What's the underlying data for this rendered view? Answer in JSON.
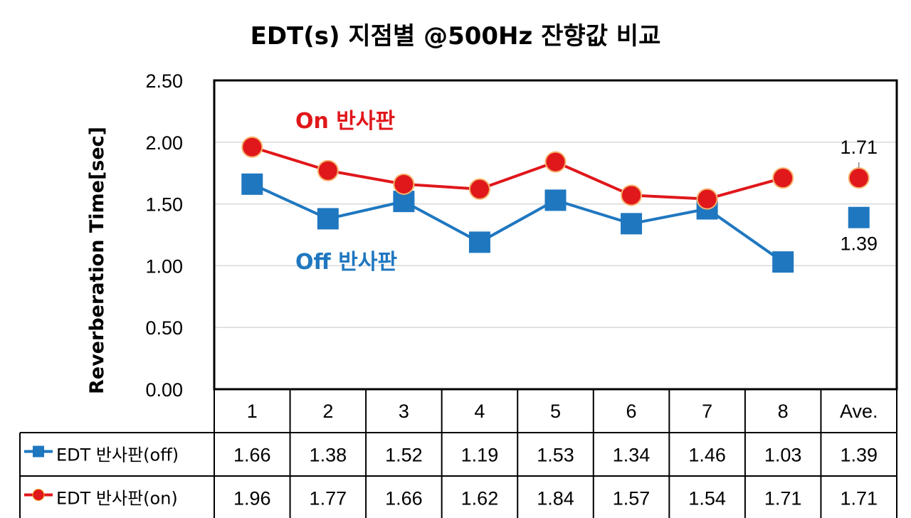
{
  "chart_data": {
    "type": "line",
    "title": "EDT(s) 지점별 @500Hz 잔향값 비교",
    "ylabel": "Reverberation Time[sec]",
    "ylim": [
      0,
      2.5
    ],
    "yticks": [
      "0.00",
      "0.50",
      "1.00",
      "1.50",
      "2.00",
      "2.50"
    ],
    "grid": true,
    "categories": [
      "1",
      "2",
      "3",
      "4",
      "5",
      "6",
      "7",
      "8",
      "Ave."
    ],
    "series": [
      {
        "name": "EDT 반사판(off)",
        "color": "#1f77c0",
        "marker": "square",
        "values": [
          1.66,
          1.38,
          1.52,
          1.19,
          1.53,
          1.34,
          1.46,
          1.03,
          1.39
        ],
        "table_values": [
          "1.66",
          "1.38",
          "1.52",
          "1.19",
          "1.53",
          "1.34",
          "1.46",
          "1.03",
          "1.39"
        ]
      },
      {
        "name": "EDT 반사판(on)",
        "color": "#e0171b",
        "marker": "circle",
        "values": [
          1.96,
          1.77,
          1.66,
          1.62,
          1.84,
          1.57,
          1.54,
          1.71,
          1.71
        ],
        "table_values": [
          "1.96",
          "1.77",
          "1.66",
          "1.62",
          "1.84",
          "1.57",
          "1.54",
          "1.71",
          "1.71"
        ]
      }
    ],
    "annotations": [
      {
        "text": "On 반사판",
        "color": "#e0171b"
      },
      {
        "text": "Off 반사판",
        "color": "#1f77c0"
      }
    ],
    "data_labels": [
      {
        "series": 1,
        "index": 8,
        "text": "1.71"
      },
      {
        "series": 0,
        "index": 8,
        "text": "1.39"
      }
    ],
    "data_table": true
  }
}
